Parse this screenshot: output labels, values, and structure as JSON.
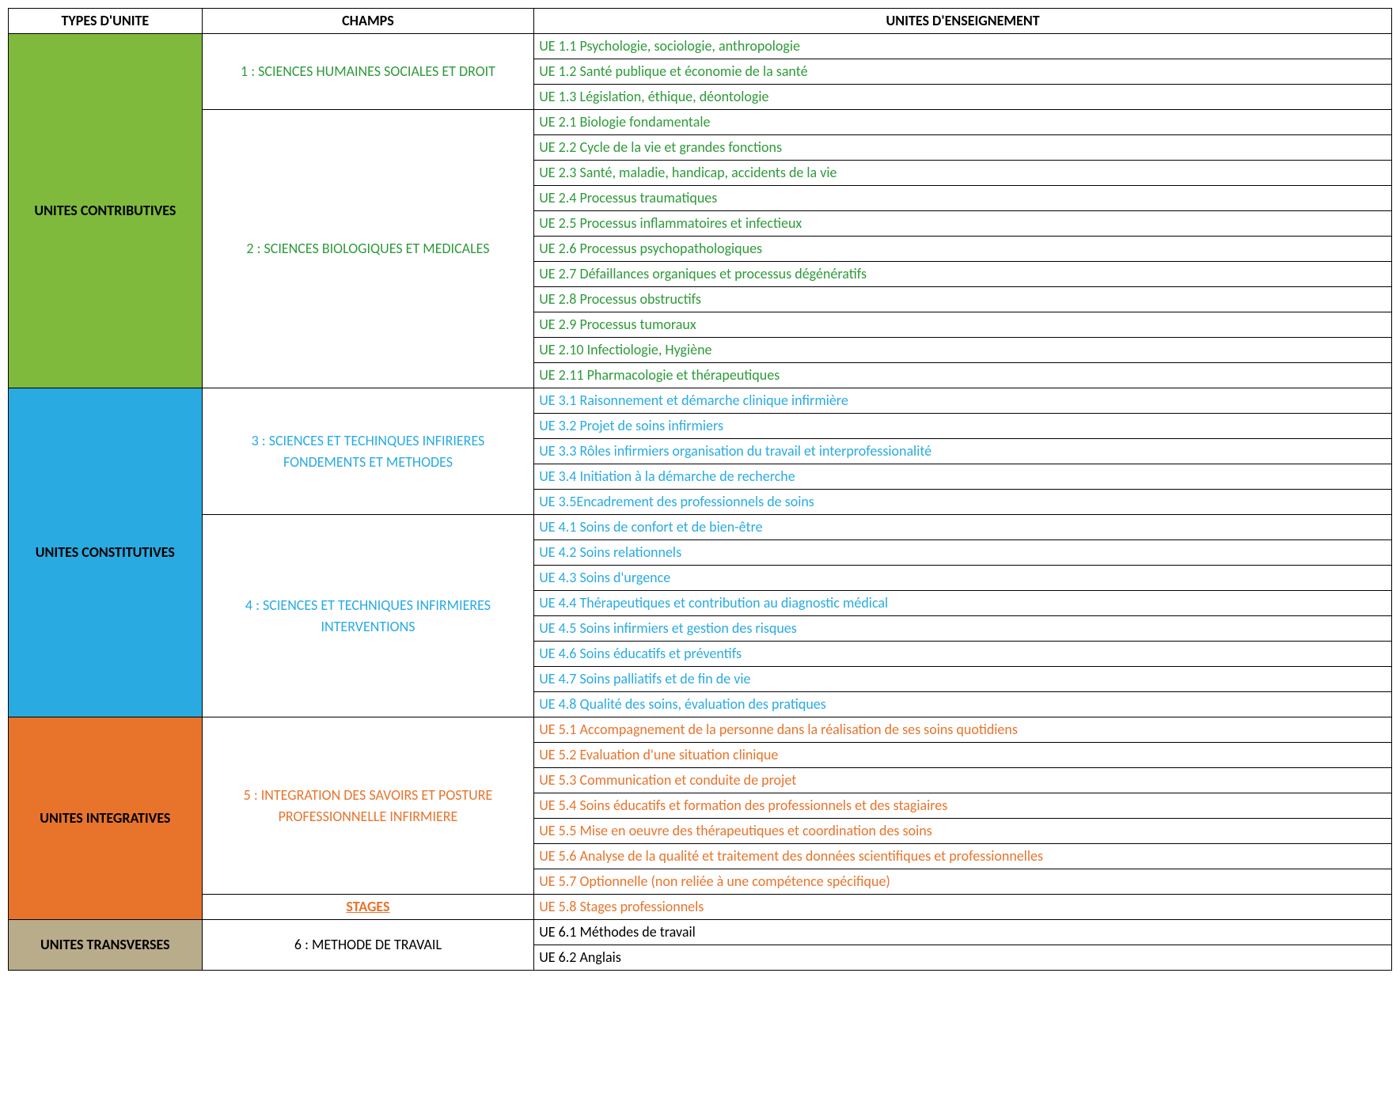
{
  "headers": {
    "types": "TYPES D'UNITE",
    "champs": "CHAMPS",
    "ue": "UNITES D'ENSEIGNEMENT"
  },
  "colors": {
    "green_bg": "#7fba3d",
    "green_text": "#2e9a3a",
    "blue_bg": "#29abe2",
    "blue_text": "#29abe2",
    "orange_bg": "#e8742c",
    "orange_text": "#e8742c",
    "tan_bg": "#b9ac8b",
    "black": "#000000"
  },
  "types": {
    "contributives": "UNITES CONTRIBUTIVES",
    "constitutives": "UNITES CONSTITUTIVES",
    "integratives": "UNITES INTEGRATIVES",
    "transverses": "UNITES TRANSVERSES"
  },
  "champs": {
    "c1": "1 : SCIENCES HUMAINES SOCIALES ET DROIT",
    "c2": "2 : SCIENCES BIOLOGIQUES ET MEDICALES",
    "c3": "3 : SCIENCES ET TECHINQUES INFIRIERES\nFONDEMENTS ET METHODES",
    "c4": "4 : SCIENCES ET TECHNIQUES INFIRMIERES\nINTERVENTIONS",
    "c5": "5 : INTEGRATION DES SAVOIRS ET POSTURE PROFESSIONNELLE INFIRMIERE",
    "stages": "STAGES",
    "c6": "6 : METHODE DE TRAVAIL"
  },
  "ue": {
    "u1_1": "UE 1.1 Psychologie, sociologie, anthropologie",
    "u1_2": "UE 1.2 Santé publique et économie de la santé",
    "u1_3": "UE 1.3 Législation, éthique, déontologie",
    "u2_1": "UE 2.1 Biologie fondamentale",
    "u2_2": "UE 2.2 Cycle de la vie et grandes fonctions",
    "u2_3": "UE 2.3 Santé, maladie, handicap, accidents de la vie",
    "u2_4": "UE 2.4 Processus traumatiques",
    "u2_5": "UE 2.5 Processus inflammatoires et infectieux",
    "u2_6": "UE 2.6 Processus psychopathologiques",
    "u2_7": "UE 2.7 Défaillances organiques et processus dégénératifs",
    "u2_8": "UE 2.8 Processus obstructifs",
    "u2_9": "UE 2.9 Processus tumoraux",
    "u2_10": "UE 2.10 Infectiologie, Hygiène",
    "u2_11": "UE 2.11 Pharmacologie et thérapeutiques",
    "u3_1": "UE 3.1 Raisonnement et démarche clinique infirmière",
    "u3_2": "UE 3.2 Projet de soins infirmiers",
    "u3_3": "UE 3.3 Rôles infirmiers organisation du travail et interprofessionalité",
    "u3_4": "UE 3.4 Initiation à la démarche de recherche",
    "u3_5": "UE 3.5Encadrement des professionnels de soins",
    "u4_1": "UE 4.1 Soins de confort et de bien-être",
    "u4_2": "UE 4.2 Soins relationnels",
    "u4_3": "UE 4.3 Soins d'urgence",
    "u4_4": "UE 4.4 Thérapeutiques et contribution au diagnostic médical",
    "u4_5": "UE 4.5 Soins infirmiers et gestion des risques",
    "u4_6": "UE 4.6 Soins éducatifs et préventifs",
    "u4_7": "UE 4.7 Soins palliatifs et de fin de vie",
    "u4_8": "UE 4.8 Qualité des soins, évaluation des pratiques",
    "u5_1": "UE 5.1 Accompagnement de la personne dans la réalisation de ses soins quotidiens",
    "u5_2": "UE 5.2 Evaluation d'une situation clinique",
    "u5_3": "UE 5.3 Communication et conduite de projet",
    "u5_4": "UE 5.4 Soins éducatifs et formation des professionnels et des stagiaires",
    "u5_5": "UE 5.5 Mise en oeuvre des thérapeutiques et coordination des soins",
    "u5_6": "UE 5.6 Analyse de la qualité et traitement des données scientifiques et professionnelles",
    "u5_7": "UE 5.7 Optionnelle (non reliée à une compétence spécifique)",
    "u5_8": "UE 5.8 Stages professionnels",
    "u6_1": "UE 6.1 Méthodes de travail",
    "u6_2": "UE 6.2 Anglais"
  }
}
